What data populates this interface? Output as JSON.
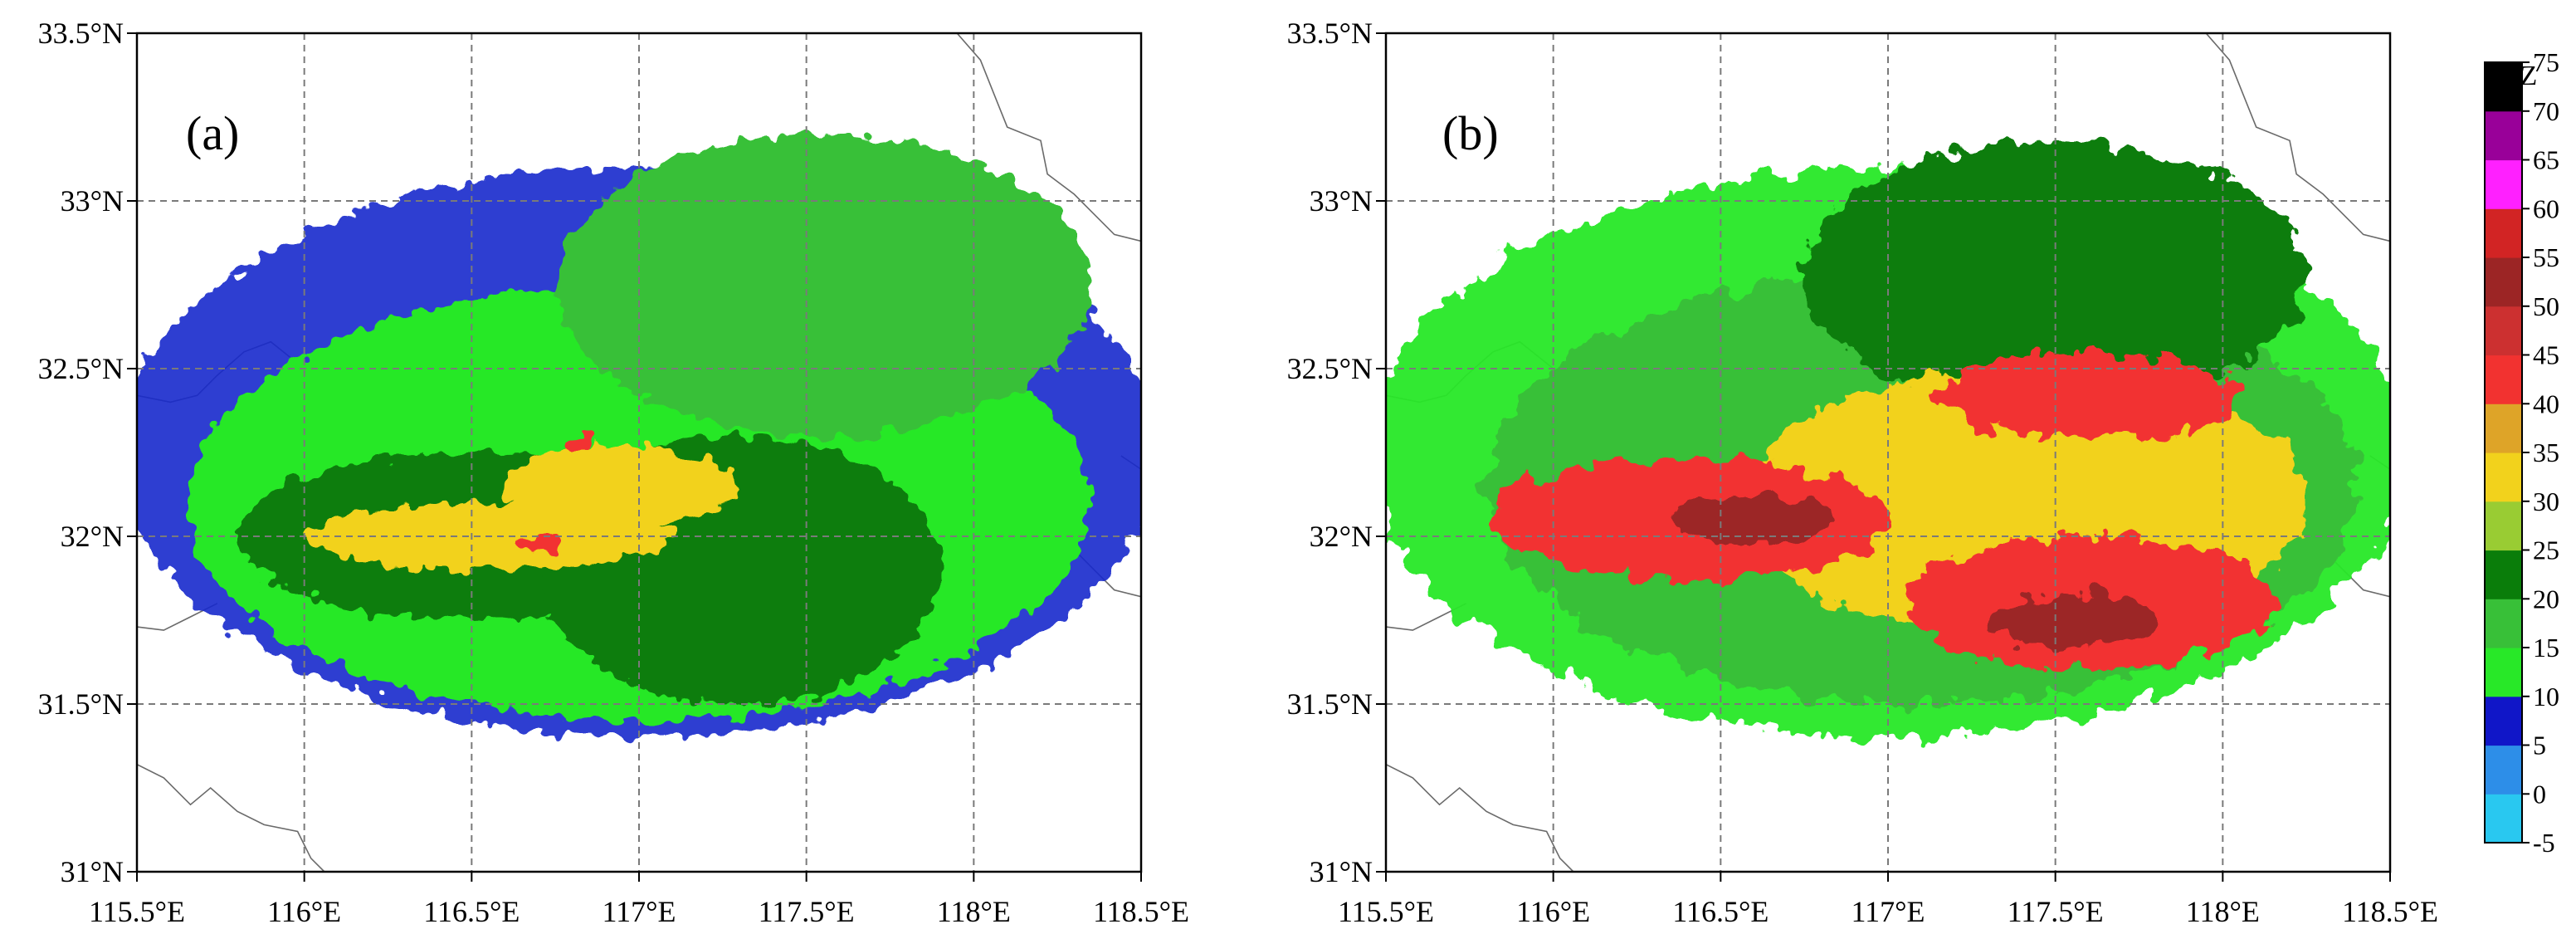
{
  "figure": {
    "panels": [
      {
        "label": "(a)"
      },
      {
        "label": "(b)"
      }
    ],
    "x_ticks": [
      "115.5°E",
      "116°E",
      "116.5°E",
      "117°E",
      "117.5°E",
      "118°E",
      "118.5°E"
    ],
    "y_ticks": [
      "31°N",
      "31.5°N",
      "32°N",
      "32.5°N",
      "33°N",
      "33.5°N"
    ]
  },
  "colorbar": {
    "title": "dBZ",
    "levels": [
      "-5",
      "0",
      "5",
      "10",
      "15",
      "20",
      "25",
      "30",
      "35",
      "40",
      "45",
      "50",
      "55",
      "60",
      "65",
      "70",
      "75"
    ],
    "colors": [
      "#29c8f0",
      "#2d8ee8",
      "#1016c8",
      "#28e828",
      "#38c038",
      "#0a7d0a",
      "#99cc33",
      "#f2d21c",
      "#dea428",
      "#f23230",
      "#cc3030",
      "#9c2525",
      "#d22424",
      "#ff20ff",
      "#990099",
      "#000000"
    ]
  },
  "colors": {
    "bg_echo": "#1a2acc",
    "grid": "#7a7a7a",
    "coast": "#6a6a6a"
  },
  "chart_data": {
    "type": "heatmap",
    "xlim": [
      115.5,
      118.5
    ],
    "ylim": [
      31,
      33.5
    ],
    "grid": true,
    "panels": [
      {
        "label": "(a)",
        "max_dbz": 40,
        "echoes": [
          {
            "lon": 117.0,
            "lat": 32.1,
            "dbz": 10,
            "rlon": 1.35,
            "rlat": 0.65
          },
          {
            "lon": 117.55,
            "lat": 32.75,
            "dbz": 15,
            "rlon": 0.8,
            "rlat": 0.45
          },
          {
            "lon": 116.5,
            "lat": 32.0,
            "dbz": 20,
            "rlon": 0.7,
            "rlat": 0.25
          },
          {
            "lon": 117.3,
            "lat": 31.9,
            "dbz": 20,
            "rlon": 0.6,
            "rlat": 0.4
          },
          {
            "lon": 116.55,
            "lat": 32.0,
            "dbz": 30,
            "rlon": 0.55,
            "rlat": 0.1
          },
          {
            "lon": 116.95,
            "lat": 32.15,
            "dbz": 30,
            "rlon": 0.35,
            "rlat": 0.12
          },
          {
            "lon": 116.82,
            "lat": 32.28,
            "dbz": 40,
            "rlon": 0.04,
            "rlat": 0.03
          },
          {
            "lon": 116.7,
            "lat": 31.98,
            "dbz": 40,
            "rlon": 0.05,
            "rlat": 0.03
          }
        ]
      },
      {
        "label": "(b)",
        "max_dbz": 50,
        "echoes": [
          {
            "lon": 117.1,
            "lat": 32.15,
            "dbz": 15,
            "rlon": 1.3,
            "rlat": 0.65
          },
          {
            "lon": 117.5,
            "lat": 32.78,
            "dbz": 20,
            "rlon": 0.75,
            "rlat": 0.4
          },
          {
            "lon": 117.4,
            "lat": 32.1,
            "dbz": 30,
            "rlon": 0.85,
            "rlat": 0.4
          },
          {
            "lon": 116.4,
            "lat": 32.05,
            "dbz": 40,
            "rlon": 0.6,
            "rlat": 0.18
          },
          {
            "lon": 117.6,
            "lat": 31.8,
            "dbz": 40,
            "rlon": 0.55,
            "rlat": 0.2
          },
          {
            "lon": 117.6,
            "lat": 32.42,
            "dbz": 40,
            "rlon": 0.45,
            "rlat": 0.13
          },
          {
            "lon": 116.6,
            "lat": 32.05,
            "dbz": 50,
            "rlon": 0.25,
            "rlat": 0.07
          },
          {
            "lon": 117.55,
            "lat": 31.75,
            "dbz": 50,
            "rlon": 0.25,
            "rlat": 0.08
          }
        ]
      }
    ]
  }
}
